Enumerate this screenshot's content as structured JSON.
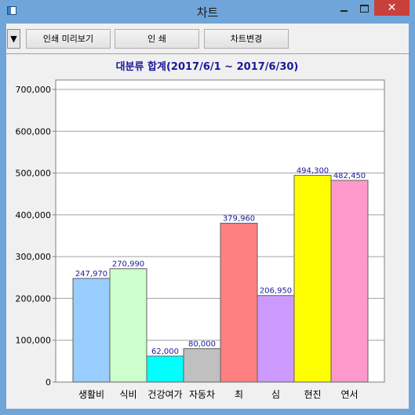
{
  "window": {
    "title": "차트",
    "close_label": "✕"
  },
  "toolbar": {
    "dropdown_label": "▼",
    "print_preview_label": "인쇄 미리보기",
    "print_label": "인 쇄",
    "change_chart_label": "차트변경"
  },
  "chart_data": {
    "type": "bar",
    "title": "대분류 합계(2017/6/1 ~ 2017/6/30)",
    "categories": [
      "생활비",
      "식비",
      "건강여가",
      "자동차",
      "최",
      "심",
      "현진",
      "연서"
    ],
    "values": [
      247970,
      270990,
      62000,
      80000,
      379960,
      206950,
      494300,
      482450
    ],
    "data_labels": [
      "247,970",
      "270,990",
      "62,000",
      "80,000",
      "379,960",
      "206,950",
      "494,300",
      "482,450"
    ],
    "colors": [
      "#99ccff",
      "#ccffcc",
      "#00ffff",
      "#c0c0c0",
      "#ff8080",
      "#cc99ff",
      "#ffff00",
      "#ff99cc"
    ],
    "ylim": [
      0,
      700000
    ],
    "yticks": [
      0,
      100000,
      200000,
      300000,
      400000,
      500000,
      600000,
      700000
    ],
    "ytick_labels": [
      "0",
      "100,000",
      "200,000",
      "300,000",
      "400,000",
      "500,000",
      "600,000",
      "700,000"
    ],
    "grid": true,
    "legend": "none",
    "xlabel": "",
    "ylabel": ""
  }
}
